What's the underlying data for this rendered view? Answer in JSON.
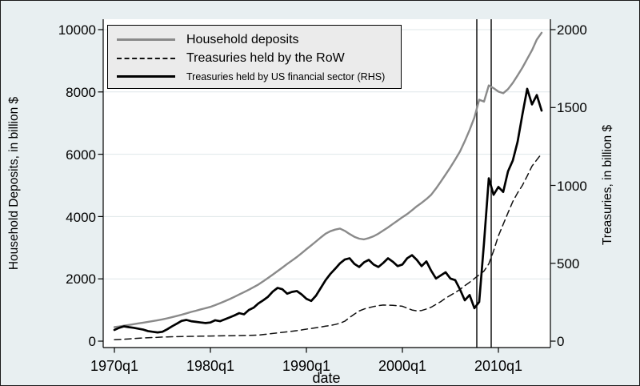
{
  "figure": {
    "background_color": "#e8eff1",
    "plot_background_color": "#ffffff",
    "gridline_color": "#dfe7ea",
    "axis_color": "#000000"
  },
  "chart_data": {
    "type": "line",
    "x_axis": {
      "title": "date",
      "ticks": [
        "1970q1",
        "1980q1",
        "1990q1",
        "2000q1",
        "2010q1"
      ],
      "tick_years": [
        1970,
        1980,
        1990,
        2000,
        2010
      ]
    },
    "y_left": {
      "title": "Household Deposits, in billion $",
      "ticks": [
        0,
        2000,
        4000,
        6000,
        8000,
        10000
      ],
      "range": [
        0,
        10000
      ]
    },
    "y_right": {
      "title": "Treasuries, in billion $",
      "ticks": [
        0,
        500,
        1000,
        1500,
        2000
      ],
      "range": [
        0,
        2000
      ]
    },
    "reference_lines_x_years": [
      2007.75,
      2009.25
    ],
    "legend_position": "top-left",
    "grid": true,
    "series": [
      {
        "name": "Household deposits",
        "axis": "left",
        "style": "solid",
        "color": "#8a8a8a",
        "width": 2.4,
        "x_start": 1970,
        "x_step": 0.5,
        "values": [
          450,
          470,
          495,
          520,
          545,
          570,
          595,
          620,
          645,
          672,
          700,
          733,
          768,
          807,
          848,
          892,
          938,
          978,
          1020,
          1058,
          1100,
          1158,
          1218,
          1282,
          1350,
          1422,
          1498,
          1572,
          1650,
          1732,
          1818,
          1920,
          2028,
          2136,
          2250,
          2362,
          2478,
          2588,
          2700,
          2822,
          2950,
          3075,
          3200,
          3330,
          3450,
          3530,
          3580,
          3615,
          3540,
          3440,
          3350,
          3290,
          3268,
          3308,
          3368,
          3450,
          3550,
          3650,
          3760,
          3868,
          3980,
          4080,
          4200,
          4330,
          4440,
          4560,
          4700,
          4900,
          5120,
          5350,
          5580,
          5830,
          6090,
          6420,
          6780,
          7180,
          7750,
          7690,
          8210,
          8120,
          8010,
          7960,
          8090,
          8290,
          8530,
          8780,
          9060,
          9340,
          9680,
          9900
        ]
      },
      {
        "name": "Treasuries held by the RoW",
        "axis": "left",
        "style": "dashed",
        "color": "#111111",
        "width": 1.5,
        "x_start": 1970,
        "x_step": 0.5,
        "values": [
          48,
          55,
          62,
          72,
          82,
          92,
          102,
          110,
          116,
          122,
          130,
          136,
          141,
          145,
          148,
          151,
          154,
          157,
          160,
          162,
          165,
          168,
          170,
          172,
          175,
          177,
          179,
          182,
          185,
          190,
          196,
          210,
          228,
          246,
          265,
          282,
          300,
          318,
          338,
          360,
          385,
          407,
          430,
          455,
          480,
          505,
          535,
          575,
          640,
          760,
          870,
          970,
          1030,
          1075,
          1110,
          1140,
          1160,
          1155,
          1148,
          1135,
          1120,
          1060,
          1000,
          975,
          985,
          1030,
          1090,
          1180,
          1270,
          1380,
          1470,
          1560,
          1660,
          1780,
          1890,
          2010,
          2130,
          2250,
          2480,
          2900,
          3380,
          3750,
          4120,
          4480,
          4760,
          5000,
          5300,
          5620,
          5820,
          6020
        ]
      },
      {
        "name": "Treasuries held by US financial sector (RHS)",
        "axis": "right",
        "style": "solid",
        "color": "#000000",
        "width": 2.7,
        "x_start": 1970,
        "x_step": 0.5,
        "values": [
          72,
          86,
          95,
          90,
          86,
          80,
          74,
          65,
          60,
          56,
          60,
          76,
          95,
          112,
          130,
          136,
          128,
          124,
          120,
          116,
          120,
          134,
          128,
          140,
          152,
          165,
          180,
          172,
          200,
          215,
          242,
          262,
          285,
          318,
          342,
          333,
          305,
          316,
          322,
          300,
          272,
          258,
          292,
          342,
          392,
          432,
          465,
          500,
          524,
          532,
          496,
          476,
          506,
          522,
          492,
          476,
          502,
          532,
          510,
          482,
          492,
          532,
          552,
          522,
          482,
          512,
          452,
          402,
          422,
          442,
          402,
          392,
          332,
          262,
          296,
          212,
          252,
          630,
          1046,
          940,
          990,
          958,
          1090,
          1160,
          1280,
          1455,
          1620,
          1520,
          1580,
          1480
        ]
      }
    ]
  }
}
